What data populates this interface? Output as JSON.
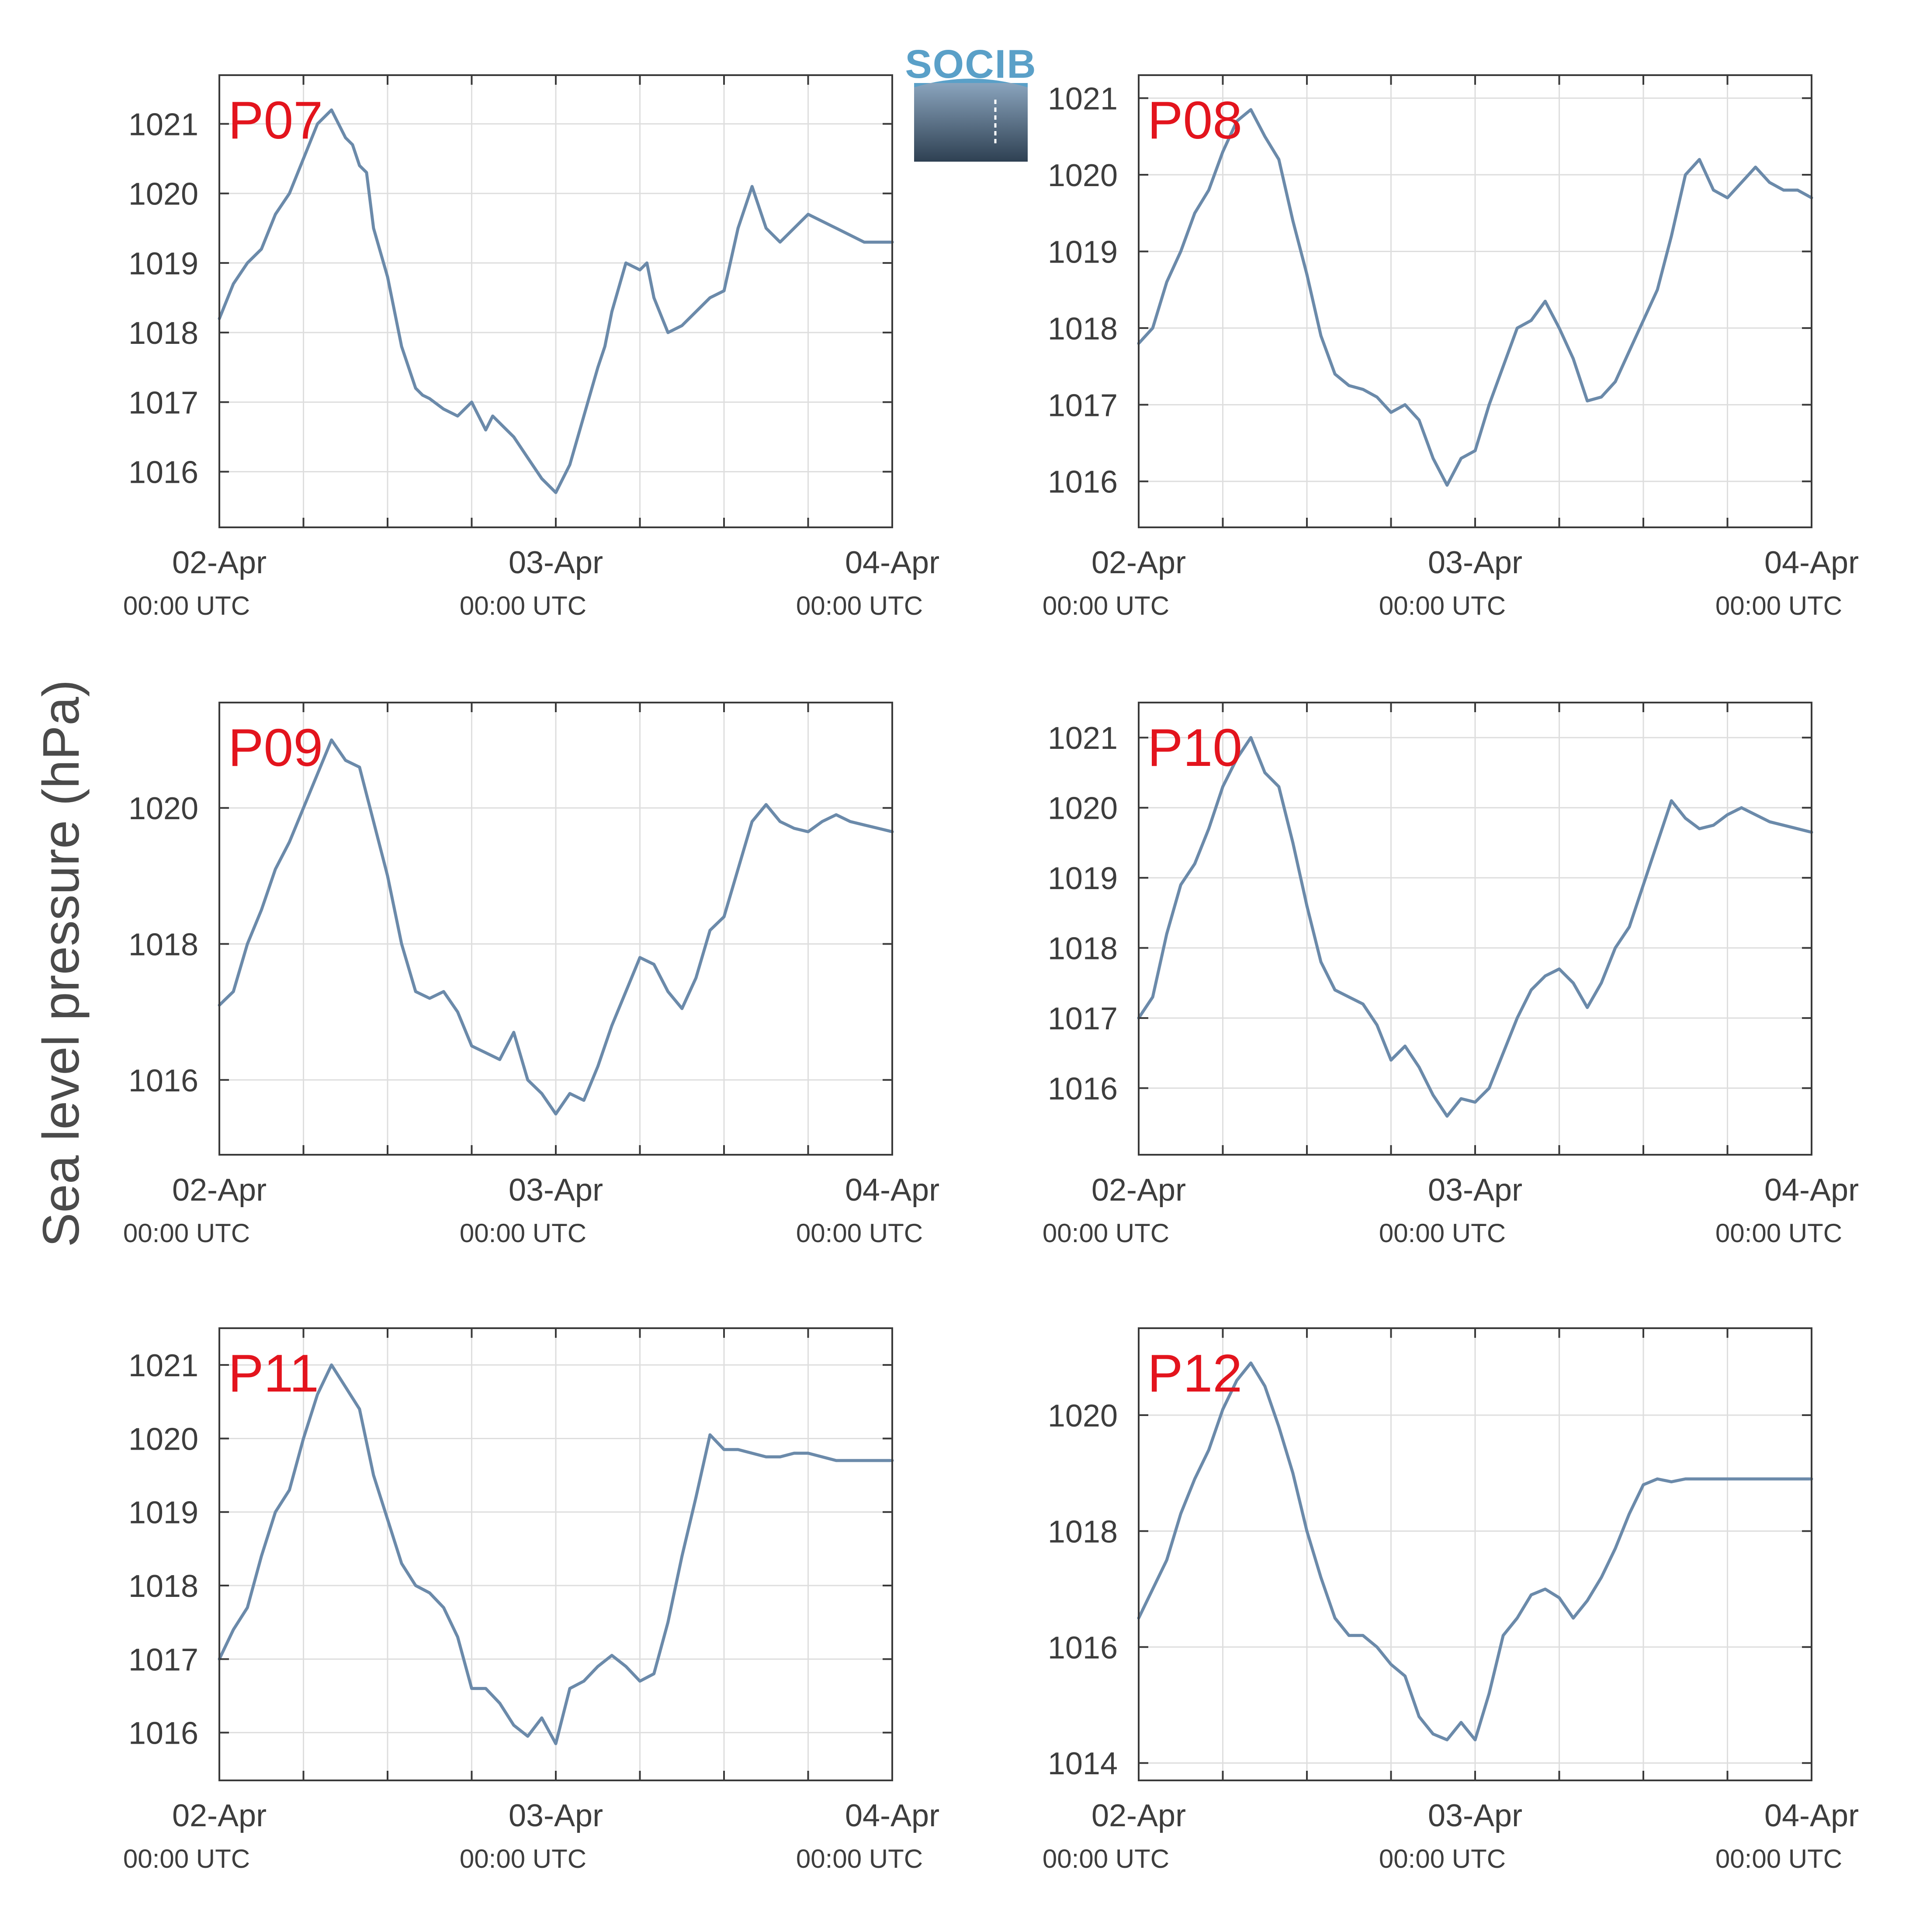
{
  "ylabel": "Sea level pressure (hPa)",
  "logo_text": "SOCIB",
  "colors": {
    "line": "#6b8aaa",
    "label": "#e3141d",
    "grid": "#dedede",
    "axis": "#3a3a3a"
  },
  "x_ticks": [
    {
      "x": 0,
      "label": "02-Apr",
      "sublabel": "00:00 UTC"
    },
    {
      "x": 24,
      "label": "03-Apr",
      "sublabel": "00:00 UTC"
    },
    {
      "x": 48,
      "label": "04-Apr",
      "sublabel": "00:00 UTC"
    }
  ],
  "chart_data": [
    {
      "type": "line",
      "label": "P07",
      "xlabel": "",
      "ylabel": "Sea level pressure (hPa)",
      "xlim": [
        0,
        48
      ],
      "ylim": [
        1015.2,
        1021.7
      ],
      "yticks": [
        1016,
        1017,
        1018,
        1019,
        1020,
        1021
      ],
      "x": [
        0,
        1,
        2,
        3,
        4,
        5,
        6,
        7,
        8,
        9,
        9.5,
        10,
        10.5,
        11,
        12,
        13,
        14,
        14.5,
        15,
        16,
        17,
        18,
        19,
        19.5,
        20,
        20.5,
        21,
        22,
        23,
        24,
        25,
        26,
        27,
        27.5,
        28,
        29,
        30,
        30.5,
        31,
        32,
        33,
        34,
        35,
        36,
        37,
        38,
        39,
        40,
        41,
        42,
        43,
        44,
        45,
        46,
        47,
        48
      ],
      "y": [
        1018.2,
        1018.7,
        1019.0,
        1019.2,
        1019.7,
        1020.0,
        1020.5,
        1021.0,
        1021.2,
        1020.8,
        1020.7,
        1020.4,
        1020.3,
        1019.5,
        1018.8,
        1017.8,
        1017.2,
        1017.1,
        1017.05,
        1016.9,
        1016.8,
        1017.0,
        1016.6,
        1016.8,
        1016.7,
        1016.6,
        1016.5,
        1016.2,
        1015.9,
        1015.7,
        1016.1,
        1016.8,
        1017.5,
        1017.8,
        1018.3,
        1019.0,
        1018.9,
        1019.0,
        1018.5,
        1018.0,
        1018.1,
        1018.3,
        1018.5,
        1018.6,
        1019.5,
        1020.1,
        1019.5,
        1019.3,
        1019.5,
        1019.7,
        1019.6,
        1019.5,
        1019.4,
        1019.3,
        1019.3,
        1019.3
      ]
    },
    {
      "type": "line",
      "label": "P08",
      "xlabel": "",
      "ylabel": "Sea level pressure (hPa)",
      "xlim": [
        0,
        48
      ],
      "ylim": [
        1015.4,
        1021.3
      ],
      "yticks": [
        1016,
        1017,
        1018,
        1019,
        1020,
        1021
      ],
      "x": [
        0,
        1,
        2,
        3,
        4,
        5,
        6,
        7,
        8,
        9,
        10,
        11,
        12,
        13,
        14,
        15,
        16,
        17,
        18,
        19,
        20,
        21,
        22,
        23,
        24,
        25,
        26,
        27,
        28,
        29,
        30,
        31,
        32,
        33,
        34,
        35,
        36,
        37,
        38,
        39,
        40,
        41,
        42,
        43,
        44,
        45,
        46,
        47,
        48
      ],
      "y": [
        1017.8,
        1018.0,
        1018.6,
        1019.0,
        1019.5,
        1019.8,
        1020.3,
        1020.7,
        1020.85,
        1020.5,
        1020.2,
        1019.4,
        1018.7,
        1017.9,
        1017.4,
        1017.25,
        1017.2,
        1017.1,
        1016.9,
        1017.0,
        1016.8,
        1016.3,
        1015.95,
        1016.3,
        1016.4,
        1017.0,
        1017.5,
        1018.0,
        1018.1,
        1018.35,
        1018.0,
        1017.6,
        1017.05,
        1017.1,
        1017.3,
        1017.7,
        1018.1,
        1018.5,
        1019.2,
        1020.0,
        1020.2,
        1019.8,
        1019.7,
        1019.9,
        1020.1,
        1019.9,
        1019.8,
        1019.8,
        1019.7
      ]
    },
    {
      "type": "line",
      "label": "P09",
      "xlabel": "",
      "ylabel": "Sea level pressure (hPa)",
      "xlim": [
        0,
        48
      ],
      "ylim": [
        1014.9,
        1021.55
      ],
      "yticks": [
        1016,
        1018,
        1020
      ],
      "x": [
        0,
        1,
        2,
        3,
        4,
        5,
        6,
        7,
        8,
        9,
        10,
        11,
        12,
        13,
        14,
        15,
        16,
        17,
        18,
        19,
        20,
        21,
        22,
        23,
        24,
        25,
        26,
        27,
        28,
        29,
        30,
        31,
        32,
        33,
        34,
        35,
        36,
        37,
        38,
        39,
        40,
        41,
        42,
        43,
        44,
        45,
        46,
        47,
        48
      ],
      "y": [
        1017.1,
        1017.3,
        1018.0,
        1018.5,
        1019.1,
        1019.5,
        1020.0,
        1020.5,
        1021.0,
        1020.7,
        1020.6,
        1019.8,
        1019.0,
        1018.0,
        1017.3,
        1017.2,
        1017.3,
        1017.0,
        1016.5,
        1016.4,
        1016.3,
        1016.7,
        1016.0,
        1015.8,
        1015.5,
        1015.8,
        1015.7,
        1016.2,
        1016.8,
        1017.3,
        1017.8,
        1017.7,
        1017.3,
        1017.05,
        1017.5,
        1018.2,
        1018.4,
        1019.1,
        1019.8,
        1020.05,
        1019.8,
        1019.7,
        1019.65,
        1019.8,
        1019.9,
        1019.8,
        1019.75,
        1019.7,
        1019.65
      ]
    },
    {
      "type": "line",
      "label": "P10",
      "xlabel": "",
      "ylabel": "Sea level pressure (hPa)",
      "xlim": [
        0,
        48
      ],
      "ylim": [
        1015.05,
        1021.5
      ],
      "yticks": [
        1016,
        1017,
        1018,
        1019,
        1020,
        1021
      ],
      "x": [
        0,
        1,
        2,
        3,
        4,
        5,
        6,
        7,
        8,
        9,
        10,
        11,
        12,
        13,
        14,
        15,
        16,
        17,
        18,
        19,
        20,
        21,
        22,
        23,
        24,
        25,
        26,
        27,
        28,
        29,
        30,
        31,
        32,
        33,
        34,
        35,
        36,
        37,
        38,
        39,
        40,
        41,
        42,
        43,
        44,
        45,
        46,
        47,
        48
      ],
      "y": [
        1017.0,
        1017.3,
        1018.2,
        1018.9,
        1019.2,
        1019.7,
        1020.3,
        1020.7,
        1021.0,
        1020.5,
        1020.3,
        1019.5,
        1018.6,
        1017.8,
        1017.4,
        1017.3,
        1017.2,
        1016.9,
        1016.4,
        1016.6,
        1016.3,
        1015.9,
        1015.6,
        1015.85,
        1015.8,
        1016.0,
        1016.5,
        1017.0,
        1017.4,
        1017.6,
        1017.7,
        1017.5,
        1017.15,
        1017.5,
        1018.0,
        1018.3,
        1018.9,
        1019.5,
        1020.1,
        1019.85,
        1019.7,
        1019.75,
        1019.9,
        1020.0,
        1019.9,
        1019.8,
        1019.75,
        1019.7,
        1019.65
      ]
    },
    {
      "type": "line",
      "label": "P11",
      "xlabel": "",
      "ylabel": "Sea level pressure (hPa)",
      "xlim": [
        0,
        48
      ],
      "ylim": [
        1015.35,
        1021.5
      ],
      "yticks": [
        1016,
        1017,
        1018,
        1019,
        1020,
        1021
      ],
      "x": [
        0,
        1,
        2,
        3,
        4,
        5,
        6,
        7,
        8,
        9,
        10,
        11,
        12,
        13,
        14,
        15,
        16,
        17,
        18,
        19,
        20,
        21,
        22,
        23,
        24,
        25,
        26,
        27,
        28,
        29,
        30,
        31,
        32,
        33,
        34,
        35,
        36,
        37,
        38,
        39,
        40,
        41,
        42,
        43,
        44,
        45,
        46,
        47,
        48
      ],
      "y": [
        1017.0,
        1017.4,
        1017.7,
        1018.4,
        1019.0,
        1019.3,
        1020.0,
        1020.6,
        1021.0,
        1020.7,
        1020.4,
        1019.5,
        1018.9,
        1018.3,
        1018.0,
        1017.9,
        1017.7,
        1017.3,
        1016.6,
        1016.6,
        1016.4,
        1016.1,
        1015.95,
        1016.2,
        1015.85,
        1016.6,
        1016.7,
        1016.9,
        1017.05,
        1016.9,
        1016.7,
        1016.8,
        1017.5,
        1018.4,
        1019.2,
        1020.05,
        1019.85,
        1019.85,
        1019.8,
        1019.75,
        1019.75,
        1019.8,
        1019.8,
        1019.75,
        1019.7,
        1019.7,
        1019.7,
        1019.7,
        1019.7
      ]
    },
    {
      "type": "line",
      "label": "P12",
      "xlabel": "",
      "ylabel": "Sea level pressure (hPa)",
      "xlim": [
        0,
        48
      ],
      "ylim": [
        1013.7,
        1021.5
      ],
      "yticks": [
        1014,
        1016,
        1018,
        1020
      ],
      "x": [
        0,
        1,
        2,
        3,
        4,
        5,
        6,
        7,
        8,
        9,
        10,
        11,
        12,
        13,
        14,
        15,
        16,
        17,
        18,
        19,
        20,
        21,
        22,
        23,
        24,
        25,
        26,
        27,
        28,
        29,
        30,
        31,
        32,
        33,
        34,
        35,
        36,
        37,
        38,
        39,
        40,
        41,
        42,
        43,
        44,
        45,
        46,
        47,
        48
      ],
      "y": [
        1016.5,
        1017.0,
        1017.5,
        1018.3,
        1018.9,
        1019.4,
        1020.1,
        1020.6,
        1020.9,
        1020.5,
        1019.8,
        1019.0,
        1018.0,
        1017.2,
        1016.5,
        1016.2,
        1016.2,
        1016.0,
        1015.7,
        1015.5,
        1014.8,
        1014.5,
        1014.4,
        1014.7,
        1014.4,
        1015.2,
        1016.2,
        1016.5,
        1016.9,
        1017.0,
        1016.85,
        1016.5,
        1016.8,
        1017.2,
        1017.7,
        1018.3,
        1018.8,
        1018.9,
        1018.85,
        1018.9,
        1018.9,
        1018.9,
        1018.9,
        1018.9,
        1018.9,
        1018.9,
        1018.9,
        1018.9,
        1018.9
      ]
    }
  ]
}
